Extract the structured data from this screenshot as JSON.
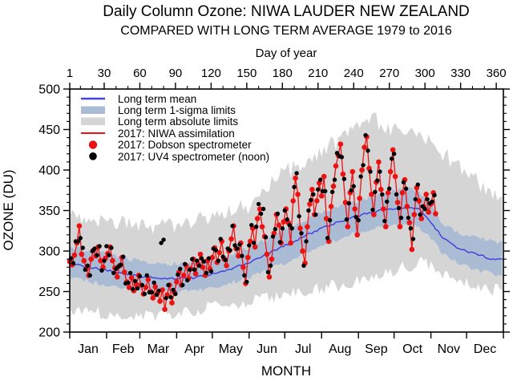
{
  "title": "Daily Column Ozone: NIWA LAUDER NEW ZEALAND",
  "subtitle": "COMPARED WITH LONG TERM AVERAGE 1979 to 2016",
  "colors": {
    "mean": "#4444dd",
    "sigma_band": "#a9bcd4",
    "abs_band": "#d5d5d5",
    "assim": "#ee1111",
    "dobson": "#ee1111",
    "uv4": "#000000",
    "axis": "#000000",
    "background": "#ffffff"
  },
  "legend": {
    "items": [
      {
        "label": "Long term mean",
        "swatch": "line-blue"
      },
      {
        "label": "Long term 1-sigma limits",
        "swatch": "band-blue"
      },
      {
        "label": "Long term absolute limits",
        "swatch": "band-gray"
      },
      {
        "label": "2017: NIWA assimilation",
        "swatch": "line-red"
      },
      {
        "label": "2017: Dobson spectrometer",
        "swatch": "dot-red"
      },
      {
        "label": "2017: UV4 spectrometer (noon)",
        "swatch": "dot-black"
      }
    ]
  },
  "chart_data": {
    "type": "line",
    "title": "Daily Column Ozone: NIWA LAUDER NEW ZEALAND",
    "subtitle": "COMPARED WITH LONG TERM AVERAGE 1979 to 2016",
    "xlabel_top": "Day of year",
    "xlabel_bottom": "MONTH",
    "ylabel": "OZONE (DU)",
    "xlim": [
      1,
      366
    ],
    "ylim": [
      200,
      500
    ],
    "x_ticks_top": [
      1,
      30,
      60,
      90,
      120,
      150,
      180,
      210,
      240,
      270,
      300,
      330,
      360
    ],
    "x_minor_step_top": 10,
    "y_ticks": [
      200,
      250,
      300,
      350,
      400,
      450,
      500
    ],
    "y_minor_step": 10,
    "months": [
      "Jan",
      "Feb",
      "Mar",
      "Apr",
      "May",
      "Jun",
      "Jul",
      "Aug",
      "Sep",
      "Oct",
      "Nov",
      "Dec"
    ],
    "month_boundaries": [
      1,
      32,
      60,
      91,
      121,
      152,
      182,
      213,
      244,
      274,
      305,
      335,
      366
    ],
    "grid": false,
    "legend_position": "top-left-inside",
    "series": [
      {
        "name": "Long term absolute limits",
        "type": "band",
        "days": [
          1,
          30,
          60,
          90,
          120,
          150,
          180,
          210,
          240,
          255,
          270,
          285,
          300,
          315,
          330,
          345,
          365
        ],
        "upper": [
          346,
          338,
          331,
          331,
          340,
          355,
          394,
          420,
          450,
          463,
          452,
          446,
          440,
          420,
          404,
          384,
          363
        ],
        "lower": [
          229,
          223,
          218,
          224,
          231,
          237,
          245,
          253,
          261,
          266,
          274,
          281,
          287,
          272,
          261,
          255,
          251
        ],
        "jitter_upper": 11,
        "jitter_lower": 8,
        "color": "#d5d5d5"
      },
      {
        "name": "Long term 1-sigma limits",
        "type": "band",
        "days": [
          1,
          30,
          60,
          90,
          120,
          150,
          180,
          210,
          240,
          270,
          285,
          295,
          305,
          315,
          330,
          345,
          365
        ],
        "upper": [
          305,
          297,
          288,
          284,
          288,
          303,
          324,
          345,
          360,
          374,
          377,
          374,
          356,
          334,
          320,
          316,
          310
        ],
        "lower": [
          267,
          259,
          252,
          249,
          254,
          266,
          284,
          305,
          322,
          331,
          333,
          330,
          315,
          297,
          283,
          276,
          270
        ],
        "jitter_upper": 3,
        "jitter_lower": 3,
        "color": "#a9bcd4"
      },
      {
        "name": "Long term mean",
        "type": "line",
        "days": [
          1,
          15,
          30,
          45,
          60,
          75,
          90,
          105,
          120,
          135,
          150,
          165,
          180,
          195,
          210,
          225,
          240,
          255,
          270,
          285,
          295,
          305,
          315,
          330,
          345,
          358,
          365
        ],
        "values": [
          285,
          281,
          277,
          272,
          269,
          267,
          266,
          267,
          271,
          277,
          285,
          295,
          305,
          316,
          326,
          335,
          342,
          348,
          352,
          354,
          353,
          336,
          316,
          302,
          296,
          289,
          290
        ],
        "jitter": 1.3,
        "color": "#4444dd",
        "width": 1.5
      },
      {
        "name": "2017: NIWA assimilation",
        "type": "line",
        "day_start": 1,
        "day_step": 2,
        "values": [
          287,
          283,
          295,
          310,
          331,
          296,
          288,
          278,
          270,
          290,
          301,
          294,
          305,
          288,
          280,
          291,
          297,
          305,
          288,
          279,
          268,
          282,
          292,
          274,
          262,
          255,
          267,
          251,
          259,
          270,
          258,
          247,
          255,
          265,
          250,
          242,
          256,
          248,
          238,
          252,
          228,
          246,
          258,
          236,
          249,
          262,
          274,
          258,
          270,
          282,
          266,
          278,
          290,
          272,
          284,
          296,
          280,
          270,
          288,
          278,
          292,
          304,
          286,
          298,
          312,
          290,
          282,
          300,
          315,
          331,
          303,
          294,
          310,
          280,
          260,
          292,
          312,
          328,
          305,
          340,
          352,
          330,
          318,
          296,
          268,
          290,
          322,
          345,
          332,
          310,
          336,
          352,
          335,
          310,
          362,
          390,
          370,
          328,
          300,
          285,
          330,
          358,
          376,
          345,
          362,
          384,
          368,
          392,
          340,
          312,
          355,
          380,
          405,
          418,
          432,
          395,
          360,
          330,
          372,
          398,
          352,
          320,
          365,
          400,
          428,
          441,
          402,
          370,
          345,
          385,
          410,
          376,
          352,
          330,
          372,
          398,
          425,
          392,
          360,
          330,
          372,
          388,
          355,
          335,
          302,
          345,
          378,
          362,
          340,
          355,
          370,
          348,
          358,
          372,
          346
        ],
        "color": "#ee1111",
        "width": 1.3
      },
      {
        "name": "2017: Dobson spectrometer",
        "type": "points",
        "source_series": 3,
        "radius": 3.3,
        "color": "#ee1111"
      },
      {
        "name": "2017: UV4 spectrometer (noon)",
        "type": "points",
        "day_start": 2,
        "day_step": 2,
        "values": [
          291,
          285,
          312,
          312,
          316,
          304,
          277,
          282,
          270,
          300,
          303,
          295,
          306,
          276,
          288,
          306,
          295,
          304,
          273,
          278,
          281,
          283,
          293,
          260,
          261,
          273,
          253,
          263,
          254,
          269,
          258,
          247,
          270,
          249,
          249,
          261,
          246,
          251,
          310,
          314,
          242,
          258,
          243,
          252,
          247,
          271,
          278,
          258,
          284,
          264,
          277,
          290,
          277,
          288,
          282,
          291,
          287,
          273,
          291,
          275,
          303,
          301,
          288,
          315,
          293,
          289,
          303,
          301,
          331,
          307,
          303,
          308,
          294,
          270,
          262,
          307,
          332,
          310,
          330,
          358,
          346,
          352,
          317,
          274,
          282,
          318,
          327,
          346,
          311,
          328,
          350,
          339,
          332,
          328,
          379,
          396,
          343,
          322,
          282,
          312,
          350,
          363,
          370,
          345,
          376,
          388,
          374,
          374,
          316,
          338,
          373,
          388,
          421,
          417,
          416,
          389,
          339,
          359,
          375,
          380,
          342,
          338,
          392,
          406,
          443,
          424,
          398,
          351,
          373,
          387,
          398,
          370,
          337,
          361,
          377,
          414,
          420,
          370,
          353,
          341,
          385,
          377,
          341,
          328,
          315,
          364,
          382,
          345,
          355,
          352,
          364,
          359,
          361,
          369
        ],
        "radius": 2.7,
        "color": "#000000"
      }
    ]
  }
}
